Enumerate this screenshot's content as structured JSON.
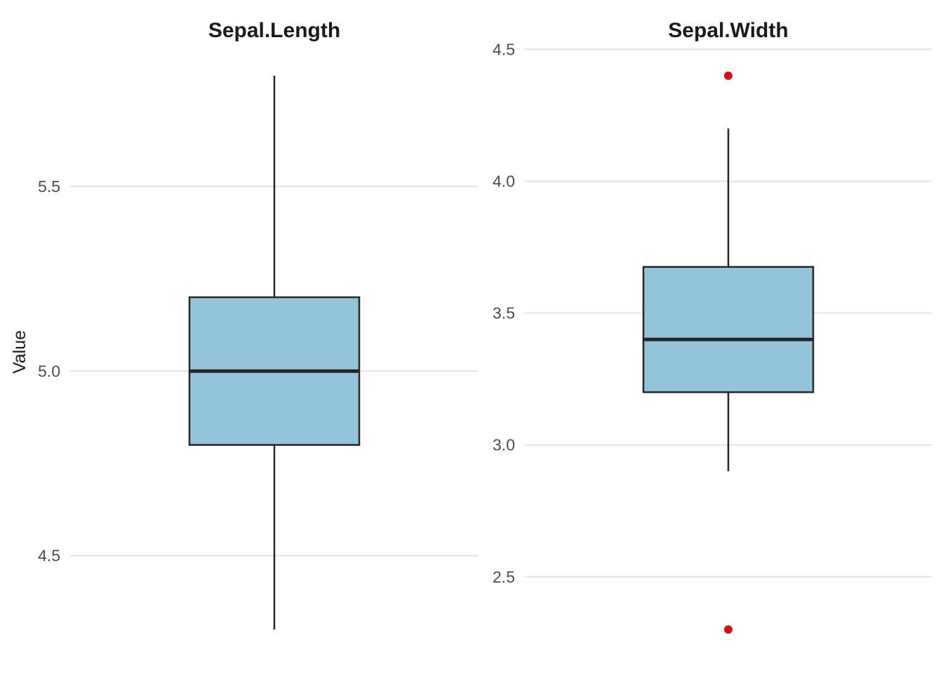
{
  "chart_data": {
    "type": "boxplot",
    "ylabel": "Value",
    "grid": true,
    "colors": {
      "box_fill": "#95c3dc",
      "box_stroke": "#262626",
      "outlier": "#d0111b",
      "grid": "#e6e6e6"
    },
    "panels": [
      {
        "title": "Sepal.Length",
        "ylim": [
          4.3,
          5.8
        ],
        "ticks": [
          {
            "value": 4.5,
            "label": "4.5"
          },
          {
            "value": 5.0,
            "label": "5.0"
          },
          {
            "value": 5.5,
            "label": "5.5"
          }
        ],
        "whisker_low": 4.3,
        "q1": 4.8,
        "median": 5.0,
        "q3": 5.2,
        "whisker_high": 5.8,
        "outliers": []
      },
      {
        "title": "Sepal.Width",
        "ylim": [
          2.3,
          4.4
        ],
        "ticks": [
          {
            "value": 2.5,
            "label": "2.5"
          },
          {
            "value": 3.0,
            "label": "3.0"
          },
          {
            "value": 3.5,
            "label": "3.5"
          },
          {
            "value": 4.0,
            "label": "4.0"
          },
          {
            "value": 4.5,
            "label": "4.5"
          }
        ],
        "whisker_low": 2.9,
        "q1": 3.2,
        "median": 3.4,
        "q3": 3.675,
        "whisker_high": 4.2,
        "outliers": [
          4.4,
          2.3
        ]
      }
    ]
  }
}
